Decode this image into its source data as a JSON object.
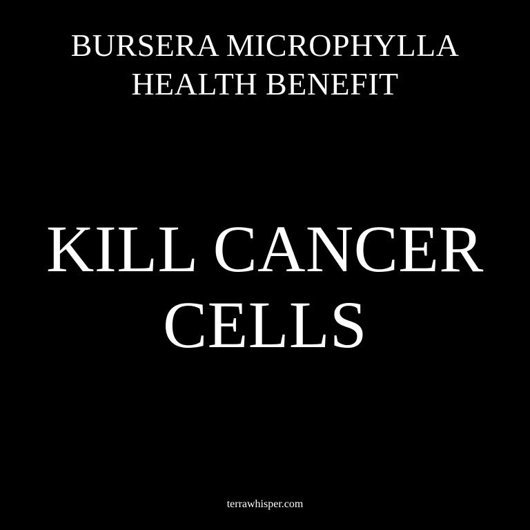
{
  "background_color": "#000000",
  "text_color": "#ffffff",
  "heading": {
    "line1": "BURSERA MICROPHYLLA",
    "line2": "HEALTH BENEFIT"
  },
  "headline": {
    "line1": "KILL CANCER",
    "line2": "CELLS"
  },
  "footer": {
    "site": "terrawhisper.com"
  }
}
